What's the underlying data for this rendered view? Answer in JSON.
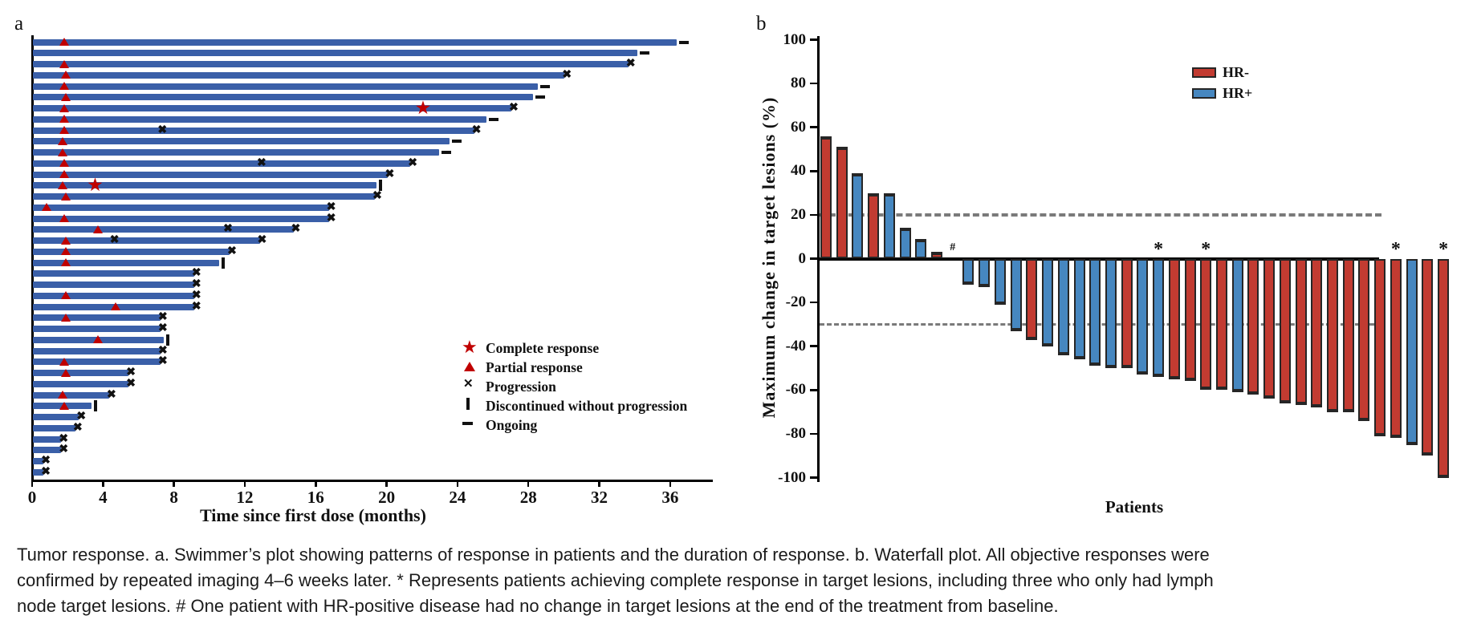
{
  "caption": {
    "lines": [
      "Tumor response. a. Swimmer’s plot showing patterns of response in patients and the duration of response. b. Waterfall plot. All objective responses were",
      "confirmed by repeated imaging 4–6 weeks later. * Represents patients achieving complete response in target lesions, including three who only had lymph",
      "node target lesions. # One patient with HR-positive disease had no change in target lesions at the end of the treatment from baseline."
    ]
  },
  "chart_data": [
    {
      "id": "swimmer",
      "type": "bar",
      "orientation": "horizontal",
      "panel_label": "a",
      "xlabel": "Time since first dose (months)",
      "xlim": [
        0,
        38.5
      ],
      "xticks": [
        0,
        4,
        8,
        12,
        16,
        20,
        24,
        28,
        32,
        36
      ],
      "bar_color": "#3a5fa8",
      "response_marker_color": "#c00000",
      "event_marker_color": "#111111",
      "legend": [
        {
          "marker": "star",
          "label": "Complete response"
        },
        {
          "marker": "triangle",
          "label": "Partial response"
        },
        {
          "marker": "x",
          "label": "Progression"
        },
        {
          "marker": "vbar",
          "label": "Discontinued without progression"
        },
        {
          "marker": "dash",
          "label": "Ongoing"
        }
      ],
      "patients": [
        {
          "duration": 36.3,
          "end": "ongoing",
          "partial_response_at": 1.8
        },
        {
          "duration": 34.1,
          "end": "ongoing"
        },
        {
          "duration": 33.6,
          "end": "progression",
          "partial_response_at": 1.8
        },
        {
          "duration": 30.0,
          "end": "progression",
          "partial_response_at": 1.9
        },
        {
          "duration": 28.5,
          "end": "ongoing",
          "partial_response_at": 1.8
        },
        {
          "duration": 28.2,
          "end": "ongoing",
          "partial_response_at": 1.9
        },
        {
          "duration": 27.0,
          "end": "progression",
          "partial_response_at": 1.8,
          "complete_response_at": 22.1
        },
        {
          "duration": 25.6,
          "end": "ongoing",
          "partial_response_at": 1.8
        },
        {
          "duration": 24.9,
          "end": "progression",
          "partial_response_at": 1.8,
          "progression_at": [
            7.4
          ]
        },
        {
          "duration": 23.5,
          "end": "ongoing",
          "partial_response_at": 1.7
        },
        {
          "duration": 22.9,
          "end": "ongoing",
          "partial_response_at": 1.7
        },
        {
          "duration": 21.3,
          "end": "progression",
          "partial_response_at": 1.8,
          "progression_at": [
            13.0
          ]
        },
        {
          "duration": 20.0,
          "end": "progression",
          "partial_response_at": 1.8
        },
        {
          "duration": 19.4,
          "end": "discontinued",
          "partial_response_at": 1.7,
          "complete_response_at": 3.6
        },
        {
          "duration": 19.3,
          "end": "progression",
          "partial_response_at": 1.9
        },
        {
          "duration": 16.7,
          "end": "progression",
          "partial_response_at": 0.8
        },
        {
          "duration": 16.7,
          "end": "progression",
          "partial_response_at": 1.8
        },
        {
          "duration": 14.7,
          "end": "progression",
          "partial_response_at": 3.7,
          "progression_at": [
            11.1
          ]
        },
        {
          "duration": 12.8,
          "end": "progression",
          "partial_response_at": 1.9,
          "progression_at": [
            4.7
          ]
        },
        {
          "duration": 11.1,
          "end": "progression",
          "partial_response_at": 1.9
        },
        {
          "duration": 10.5,
          "end": "discontinued",
          "partial_response_at": 1.9
        },
        {
          "duration": 9.1,
          "end": "progression"
        },
        {
          "duration": 9.1,
          "end": "progression"
        },
        {
          "duration": 9.1,
          "end": "progression",
          "partial_response_at": 1.9
        },
        {
          "duration": 9.1,
          "end": "progression",
          "partial_response_at": 4.7
        },
        {
          "duration": 7.2,
          "end": "progression",
          "partial_response_at": 1.9
        },
        {
          "duration": 7.2,
          "end": "progression"
        },
        {
          "duration": 7.4,
          "end": "discontinued",
          "partial_response_at": 3.7
        },
        {
          "duration": 7.2,
          "end": "progression"
        },
        {
          "duration": 7.2,
          "end": "progression",
          "partial_response_at": 1.8
        },
        {
          "duration": 5.4,
          "end": "progression",
          "partial_response_at": 1.9
        },
        {
          "duration": 5.4,
          "end": "progression"
        },
        {
          "duration": 4.3,
          "end": "progression",
          "partial_response_at": 1.7
        },
        {
          "duration": 3.3,
          "end": "discontinued",
          "partial_response_at": 1.8
        },
        {
          "duration": 2.6,
          "end": "progression"
        },
        {
          "duration": 2.4,
          "end": "progression"
        },
        {
          "duration": 1.6,
          "end": "progression"
        },
        {
          "duration": 1.6,
          "end": "progression"
        },
        {
          "duration": 0.6,
          "end": "progression"
        },
        {
          "duration": 0.6,
          "end": "progression"
        }
      ]
    },
    {
      "id": "waterfall",
      "type": "bar",
      "panel_label": "b",
      "ylabel": "Maximum change in target lesions (%)",
      "xlabel": "Patients",
      "ylim": [
        -100,
        100
      ],
      "yticks": [
        100,
        80,
        60,
        40,
        20,
        0,
        -20,
        -40,
        -60,
        -80,
        -100
      ],
      "reference_lines": [
        20,
        -30
      ],
      "reference_line_color": "#7a7a7a",
      "legend": [
        {
          "label": "HR-",
          "color": "#c23b31"
        },
        {
          "label": "HR+",
          "color": "#4687c0"
        }
      ],
      "hr_negative_color": "#c23b31",
      "hr_positive_color": "#4687c0",
      "patients": [
        {
          "value": 56,
          "hr": "HR-"
        },
        {
          "value": 51,
          "hr": "HR-"
        },
        {
          "value": 39,
          "hr": "HR+"
        },
        {
          "value": 30,
          "hr": "HR-"
        },
        {
          "value": 30,
          "hr": "HR+"
        },
        {
          "value": 14,
          "hr": "HR+"
        },
        {
          "value": 9,
          "hr": "HR+"
        },
        {
          "value": 3,
          "hr": "HR-"
        },
        {
          "value": 0,
          "hr": "HR+",
          "annotation": "#"
        },
        {
          "value": -12,
          "hr": "HR+"
        },
        {
          "value": -13,
          "hr": "HR+"
        },
        {
          "value": -21,
          "hr": "HR+"
        },
        {
          "value": -33,
          "hr": "HR+"
        },
        {
          "value": -37,
          "hr": "HR-"
        },
        {
          "value": -40,
          "hr": "HR+"
        },
        {
          "value": -44,
          "hr": "HR+"
        },
        {
          "value": -46,
          "hr": "HR+"
        },
        {
          "value": -49,
          "hr": "HR+"
        },
        {
          "value": -50,
          "hr": "HR+"
        },
        {
          "value": -50,
          "hr": "HR-"
        },
        {
          "value": -53,
          "hr": "HR+"
        },
        {
          "value": -54,
          "hr": "HR+",
          "annotation": "*"
        },
        {
          "value": -55,
          "hr": "HR-"
        },
        {
          "value": -56,
          "hr": "HR-"
        },
        {
          "value": -60,
          "hr": "HR-",
          "annotation": "*"
        },
        {
          "value": -60,
          "hr": "HR-"
        },
        {
          "value": -61,
          "hr": "HR+"
        },
        {
          "value": -62,
          "hr": "HR-"
        },
        {
          "value": -64,
          "hr": "HR-"
        },
        {
          "value": -66,
          "hr": "HR-"
        },
        {
          "value": -67,
          "hr": "HR-"
        },
        {
          "value": -68,
          "hr": "HR-"
        },
        {
          "value": -70,
          "hr": "HR-"
        },
        {
          "value": -70,
          "hr": "HR-"
        },
        {
          "value": -74,
          "hr": "HR-"
        },
        {
          "value": -81,
          "hr": "HR-"
        },
        {
          "value": -82,
          "hr": "HR-",
          "annotation": "*"
        },
        {
          "value": -85,
          "hr": "HR+"
        },
        {
          "value": -90,
          "hr": "HR-"
        },
        {
          "value": -100,
          "hr": "HR-",
          "annotation": "*"
        }
      ]
    }
  ]
}
